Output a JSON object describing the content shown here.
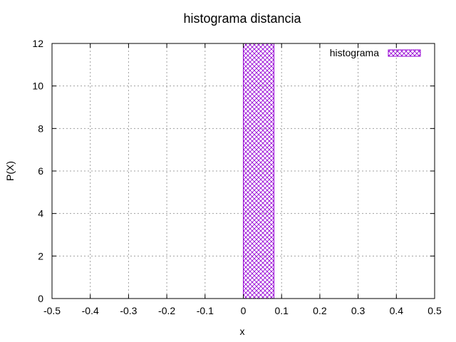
{
  "chart_data": {
    "type": "bar",
    "title": "histograma distancia",
    "xlabel": "x",
    "ylabel": "P(X)",
    "xlim": [
      -0.5,
      0.5
    ],
    "ylim": [
      0,
      12
    ],
    "xticks": [
      "-0.5",
      "-0.4",
      "-0.3",
      "-0.2",
      "-0.1",
      "0",
      "0.1",
      "0.2",
      "0.3",
      "0.4",
      "0.5"
    ],
    "yticks": [
      "0",
      "2",
      "4",
      "6",
      "8",
      "10",
      "12"
    ],
    "grid": true,
    "legend_position": "top-right",
    "series": [
      {
        "name": "histograma",
        "color": "#9400d3",
        "fill": "crosshatch",
        "bars": [
          {
            "x0": 0.0,
            "x1": 0.08,
            "value": 12
          }
        ]
      }
    ]
  }
}
